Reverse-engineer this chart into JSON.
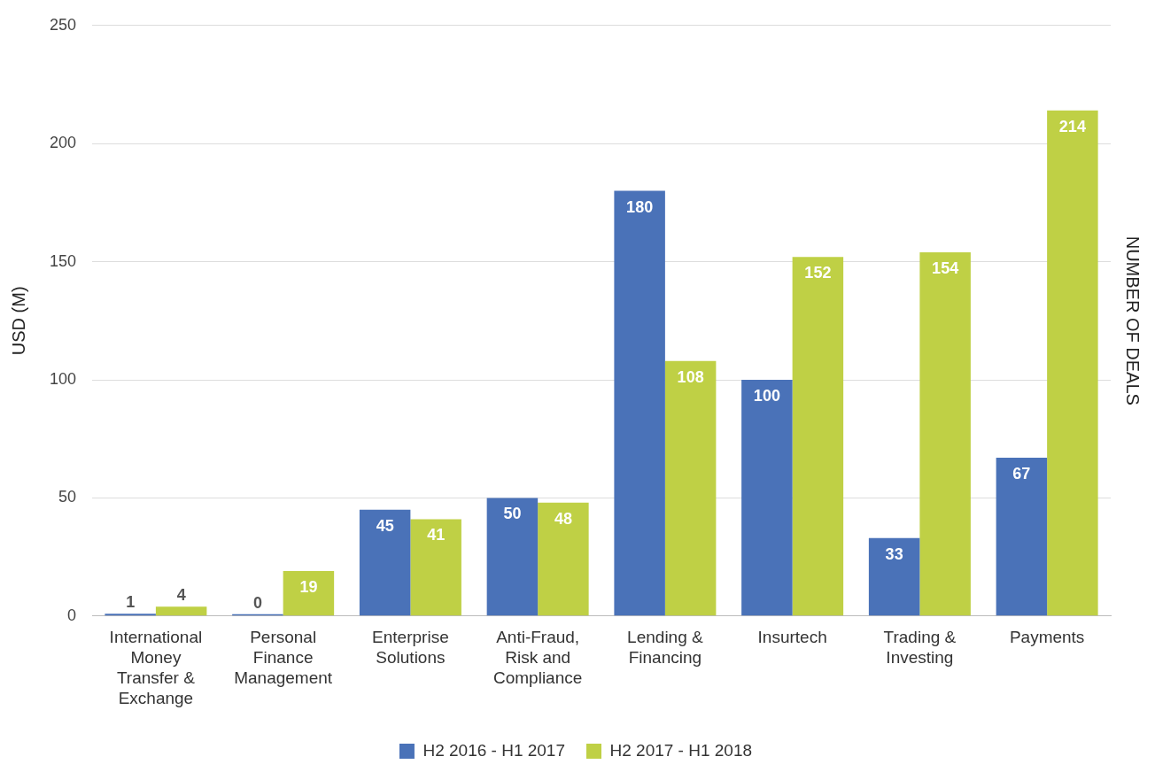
{
  "chart_data": {
    "type": "bar",
    "ylabel": "USD (M)",
    "y2label": "NUMBER OF DEALS",
    "categories": [
      "International Money Transfer & Exchange",
      "Personal Finance Management",
      "Enterprise Solutions",
      "Anti-Fraud, Risk and Compliance",
      "Lending & Financing",
      "Insurtech",
      "Trading & Investing",
      "Payments"
    ],
    "series": [
      {
        "name": "H2 2016 - H1 2017",
        "color": "#4a72b8",
        "values": [
          1,
          0,
          45,
          50,
          180,
          100,
          33,
          67
        ]
      },
      {
        "name": "H2 2017 - H1 2018",
        "color": "#bfd045",
        "values": [
          4,
          19,
          41,
          48,
          108,
          152,
          154,
          214
        ]
      }
    ],
    "ylim": [
      0,
      250
    ],
    "yticks": [
      0,
      50,
      100,
      150,
      200,
      250
    ],
    "grid": "y",
    "legend": "bottom",
    "data_labels": true
  }
}
